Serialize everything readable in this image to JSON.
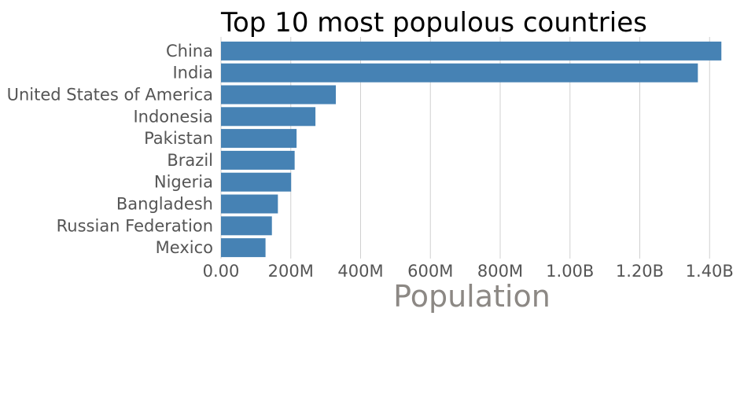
{
  "chart_data": {
    "type": "bar",
    "orientation": "horizontal",
    "title": "Top 10 most populous countries",
    "xlabel": "Population",
    "ylabel": "",
    "categories": [
      "China",
      "India",
      "United States of America",
      "Indonesia",
      "Pakistan",
      "Brazil",
      "Nigeria",
      "Bangladesh",
      "Russian Federation",
      "Mexico"
    ],
    "values": [
      1433783686,
      1366417754,
      329064917,
      270625568,
      216565318,
      211049527,
      200963599,
      163046161,
      145872256,
      127575529
    ],
    "xlim": [
      0,
      1440000000
    ],
    "ticks": [
      {
        "value": 0,
        "label": "0.00"
      },
      {
        "value": 200000000,
        "label": "200M"
      },
      {
        "value": 400000000,
        "label": "400M"
      },
      {
        "value": 600000000,
        "label": "600M"
      },
      {
        "value": 800000000,
        "label": "800M"
      },
      {
        "value": 1000000000,
        "label": "1.00B"
      },
      {
        "value": 1200000000,
        "label": "1.20B"
      },
      {
        "value": 1400000000,
        "label": "1.40B"
      }
    ],
    "grid": true,
    "legend": "none",
    "bar_color": "#4682b4"
  }
}
